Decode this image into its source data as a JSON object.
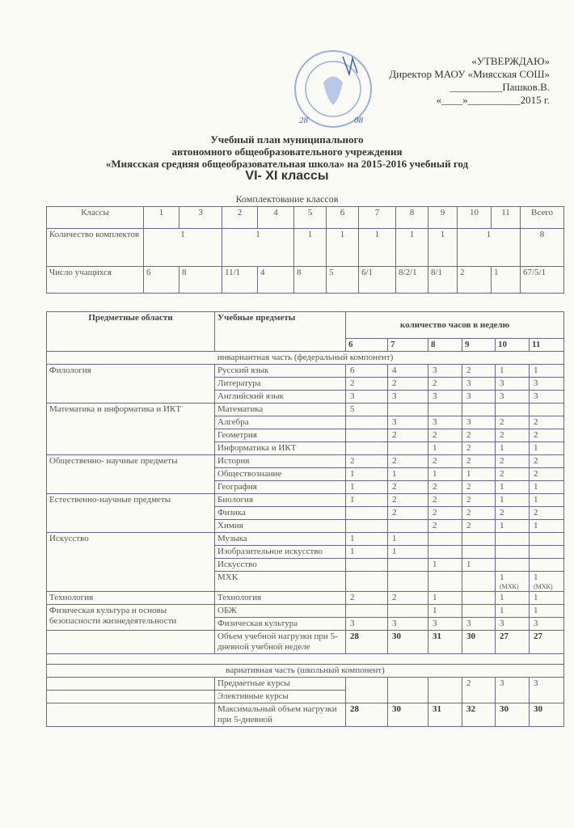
{
  "approval": {
    "line1": "«УТВЕРЖДАЮ»",
    "line2": "Директор МАОУ «Миясская  СОШ»",
    "line3": "__________Пашков.В.",
    "line4": "«____»__________2015 г.",
    "handwritten_day": "28",
    "handwritten_month": "08"
  },
  "stamp_text": "МУНИЦИПАЛЬНОГО АВТОНОМНОГО ОБЩЕОБРАЗОВАТЕЛЬНОГО УЧРЕЖДЕНИЯ МИЯССКАЯ СОШ",
  "title": {
    "line1": "Учебный план муниципального",
    "line2": "автономного общеобразовательного учреждения",
    "line3": "«Миясская  средняя общеобразовательная школа» на 2015-2016 учебный год",
    "grades": "VI- XI классы"
  },
  "classes_table": {
    "caption": "Комплектование классов",
    "header": [
      "Классы",
      "1",
      "3",
      "2",
      "4",
      "5",
      "6",
      "7",
      "8",
      "9",
      "10",
      "11",
      "Всего"
    ],
    "sets_row": {
      "label": "Количество комплектов",
      "cells": [
        {
          "v": "1",
          "span": 2
        },
        {
          "v": "1",
          "span": 2
        },
        {
          "v": "1",
          "span": 1
        },
        {
          "v": "1",
          "span": 1
        },
        {
          "v": "1",
          "span": 1
        },
        {
          "v": "1",
          "span": 1
        },
        {
          "v": "1",
          "span": 1
        },
        {
          "v": "1",
          "span": 2
        },
        {
          "v": "8",
          "span": 1
        }
      ]
    },
    "students_row": {
      "label": "Число учащихся",
      "cells": [
        "6",
        "8",
        "11/1",
        "4",
        "8",
        "5",
        "6/1",
        "8/2/1",
        "8/1",
        "2",
        "1",
        "67/5/1"
      ]
    }
  },
  "plan": {
    "col_area": "Предметные области",
    "col_subject": "Учебные предметы",
    "col_hours": "количество часов в неделю",
    "grades": [
      "6",
      "7",
      "8",
      "9",
      "10",
      "11"
    ],
    "invariant_label": "инвариантная часть (федеральный компонент)",
    "groups": [
      {
        "area": "Филология",
        "subjects": [
          {
            "name": "Русский язык",
            "hours": [
              "6",
              "4",
              "3",
              "2",
              "1",
              "1"
            ]
          },
          {
            "name": "Литература",
            "hours": [
              "2",
              "2",
              "2",
              "3",
              "3",
              "3"
            ]
          },
          {
            "name": "Английский язык",
            "hours": [
              "3",
              "3",
              "3",
              "3",
              "3",
              "3"
            ]
          }
        ]
      },
      {
        "area": "Математика и информатика и ИКТ",
        "subjects": [
          {
            "name": "Математика",
            "hours": [
              "5",
              "",
              "",
              "",
              "",
              ""
            ]
          },
          {
            "name": "Алгебра",
            "hours": [
              "",
              "3",
              "3",
              "3",
              "2",
              "2"
            ]
          },
          {
            "name": "Геометрия",
            "hours": [
              "",
              "2",
              "2",
              "2",
              "2",
              "2"
            ]
          },
          {
            "name": "Информатика и ИКТ",
            "hours": [
              "",
              "",
              "1",
              "2",
              "1",
              "1"
            ]
          }
        ]
      },
      {
        "area": "Общественно- научные предметы",
        "subjects": [
          {
            "name": "История",
            "hours": [
              "2",
              "2",
              "2",
              "2",
              "2",
              "2"
            ]
          },
          {
            "name": "Обществознание",
            "hours": [
              "1",
              "1",
              "1",
              "1",
              "2",
              "2"
            ]
          },
          {
            "name": "География",
            "hours": [
              "1",
              "2",
              "2",
              "2",
              "1",
              "1"
            ]
          }
        ]
      },
      {
        "area": "Естественно-научные предметы",
        "subjects": [
          {
            "name": "Биология",
            "hours": [
              "1",
              "2",
              "2",
              "2",
              "1",
              "1"
            ]
          },
          {
            "name": "Физика",
            "hours": [
              "",
              "2",
              "2",
              "2",
              "2",
              "2"
            ]
          },
          {
            "name": "Химия",
            "hours": [
              "",
              "",
              "2",
              "2",
              "1",
              "1"
            ]
          }
        ]
      },
      {
        "area": "Искусство",
        "subjects": [
          {
            "name": "Музыка",
            "hours": [
              "1",
              "1",
              "",
              "",
              "",
              ""
            ]
          },
          {
            "name": "Изобразительное искусство",
            "hours": [
              "1",
              "1",
              "",
              "",
              "",
              ""
            ]
          },
          {
            "name": "Искусство",
            "hours": [
              "",
              "",
              "1",
              "1",
              "",
              ""
            ]
          },
          {
            "name": "МХК",
            "hours": [
              "",
              "",
              "",
              "",
              "1 (МХК)",
              "1 (МХК)"
            ]
          }
        ]
      },
      {
        "area": "Технология",
        "subjects": [
          {
            "name": "Технология",
            "hours": [
              "2",
              "2",
              "1",
              "",
              "1",
              "1"
            ]
          }
        ]
      },
      {
        "area": "Физическая культура и основы безопасности жизнедеятельности",
        "subjects": [
          {
            "name": "ОБЖ",
            "hours": [
              "",
              "",
              "1",
              "",
              "1",
              "1"
            ]
          },
          {
            "name": "Физическая культура",
            "hours": [
              "3",
              "3",
              "3",
              "3",
              "3",
              "3"
            ]
          }
        ]
      }
    ],
    "total_5day": {
      "name": "Объем учебной нагрузки при 5-дневной учебной неделе",
      "hours": [
        "28",
        "30",
        "31",
        "30",
        "27",
        "27"
      ]
    },
    "variative_label": "вариативная часть (школьный компонент)",
    "variative": [
      {
        "name": "Предметные курсы"
      },
      {
        "name": "Элективные курсы"
      }
    ],
    "variative_hours": [
      "",
      "",
      "",
      "2",
      "3",
      "3"
    ],
    "max_5day": {
      "name": "Максимальный объем нагрузки при 5-дневной",
      "hours": [
        "28",
        "30",
        "31",
        "32",
        "30",
        "30"
      ]
    }
  },
  "colors": {
    "ink": "#3a3a3a",
    "stamp": "#5b7fd0",
    "border": "#6a6a86",
    "paper": "#fbfbf6"
  }
}
